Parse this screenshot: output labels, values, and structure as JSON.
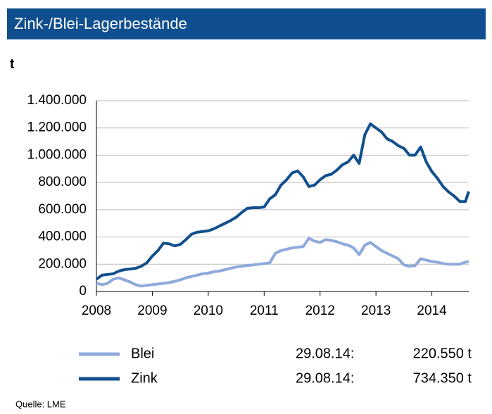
{
  "chart_data": {
    "type": "line",
    "title": "Zink-/Blei-Lagerbestände",
    "y_unit": "t",
    "source": "Quelle:  LME",
    "x": [
      2008.0,
      2008.1,
      2008.2,
      2008.3,
      2008.4,
      2008.5,
      2008.6,
      2008.7,
      2008.8,
      2008.9,
      2009.0,
      2009.1,
      2009.2,
      2009.3,
      2009.4,
      2009.5,
      2009.6,
      2009.7,
      2009.8,
      2009.9,
      2010.0,
      2010.1,
      2010.2,
      2010.3,
      2010.4,
      2010.5,
      2010.6,
      2010.7,
      2010.8,
      2010.9,
      2011.0,
      2011.1,
      2011.2,
      2011.3,
      2011.4,
      2011.5,
      2011.6,
      2011.7,
      2011.8,
      2011.9,
      2012.0,
      2012.1,
      2012.2,
      2012.3,
      2012.4,
      2012.5,
      2012.6,
      2012.7,
      2012.8,
      2012.9,
      2013.0,
      2013.1,
      2013.2,
      2013.3,
      2013.4,
      2013.5,
      2013.6,
      2013.7,
      2013.8,
      2013.9,
      2014.0,
      2014.1,
      2014.2,
      2014.3,
      2014.4,
      2014.5,
      2014.6,
      2014.66
    ],
    "series": [
      {
        "name": "Blei",
        "color": "#8ea9db",
        "last_date": "29.08.14:",
        "last_value_label": "220.550 t",
        "values": [
          60000,
          50000,
          60000,
          90000,
          100000,
          85000,
          70000,
          50000,
          40000,
          45000,
          50000,
          55000,
          60000,
          65000,
          75000,
          85000,
          100000,
          110000,
          120000,
          130000,
          135000,
          145000,
          150000,
          160000,
          170000,
          180000,
          185000,
          190000,
          195000,
          200000,
          205000,
          210000,
          280000,
          300000,
          310000,
          320000,
          325000,
          330000,
          390000,
          370000,
          360000,
          380000,
          375000,
          365000,
          350000,
          340000,
          320000,
          270000,
          340000,
          360000,
          330000,
          300000,
          280000,
          260000,
          240000,
          195000,
          185000,
          190000,
          240000,
          230000,
          220000,
          215000,
          205000,
          200000,
          200000,
          200000,
          215000,
          220550
        ]
      },
      {
        "name": "Zink",
        "color": "#11508c",
        "last_date": "29.08.14:",
        "last_value_label": "734.350 t",
        "values": [
          90000,
          120000,
          125000,
          130000,
          150000,
          160000,
          165000,
          170000,
          185000,
          210000,
          260000,
          300000,
          355000,
          350000,
          335000,
          345000,
          380000,
          420000,
          435000,
          440000,
          445000,
          460000,
          480000,
          500000,
          520000,
          545000,
          580000,
          610000,
          615000,
          615000,
          620000,
          680000,
          710000,
          780000,
          820000,
          870000,
          885000,
          840000,
          770000,
          780000,
          820000,
          850000,
          860000,
          890000,
          930000,
          950000,
          1000000,
          940000,
          1150000,
          1230000,
          1200000,
          1170000,
          1120000,
          1100000,
          1070000,
          1050000,
          1000000,
          1000000,
          1060000,
          950000,
          880000,
          830000,
          770000,
          730000,
          700000,
          660000,
          660000,
          734350
        ]
      }
    ],
    "xlim": [
      2008,
      2014.66
    ],
    "xticks": [
      2008,
      2009,
      2010,
      2011,
      2012,
      2013,
      2014
    ],
    "ylim": [
      0,
      1400000
    ],
    "yticks": [
      0,
      {
        "value": 200000,
        "label": "200.000"
      },
      {
        "value": 400000,
        "label": "400.000"
      },
      {
        "value": 600000,
        "label": "600.000"
      },
      {
        "value": 800000,
        "label": "800.000"
      },
      {
        "value": 1000000,
        "label": "1.000.000"
      },
      {
        "value": 1200000,
        "label": "1.200.000"
      },
      {
        "value": 1400000,
        "label": "1.400.000"
      }
    ],
    "grid": true
  }
}
